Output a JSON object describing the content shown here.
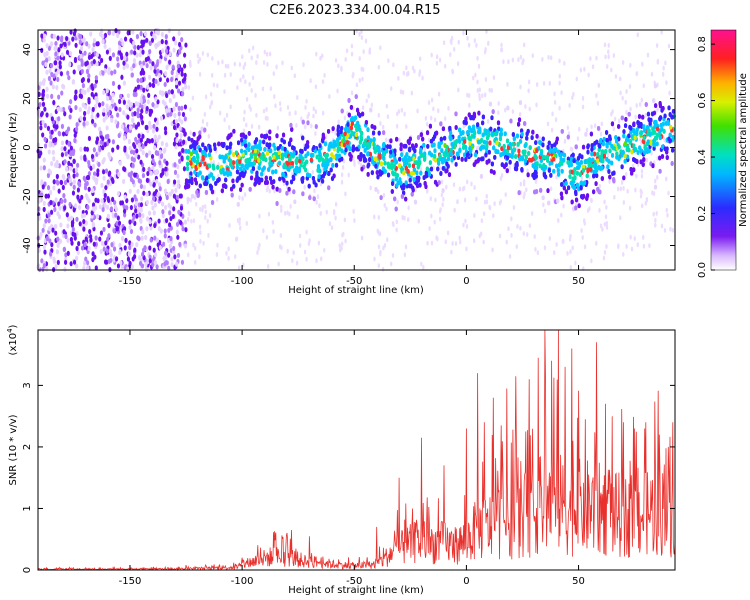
{
  "title": "C2E6.2023.334.00.04.R15",
  "colors": {
    "snr_line": "#e8302c",
    "spectrogram_dots": "#5a10f0",
    "axis": "#000000"
  },
  "chart_data": [
    {
      "type": "heatmap",
      "xlabel": "Height of straight line (km)",
      "ylabel": "Frequency (Hz)",
      "xlim": [
        -191,
        93
      ],
      "ylim": [
        -50,
        48
      ],
      "xticks": [
        -150,
        -100,
        -50,
        0,
        50
      ],
      "yticks": [
        -40,
        -20,
        0,
        20,
        40
      ],
      "colorbar": {
        "label": "Normalized spectral amplitude",
        "range": [
          0.0,
          0.85
        ],
        "ticks": [
          0.0,
          0.2,
          0.4,
          0.6,
          0.8
        ],
        "colormap": "rainbow (white-purple-blue-cyan-green-yellow-red-magenta)"
      },
      "ridge": {
        "description": "Main signal band frequency centre vs height",
        "x": [
          -125,
          -110,
          -100,
          -90,
          -80,
          -70,
          -60,
          -50,
          -45,
          -40,
          -30,
          -20,
          -10,
          0,
          10,
          20,
          30,
          40,
          50,
          60,
          70,
          80,
          90
        ],
        "y": [
          -5,
          -8,
          -4,
          -4,
          -5,
          -7,
          -3,
          8,
          2,
          -3,
          -10,
          -6,
          -2,
          3,
          3,
          0,
          -3,
          -6,
          -12,
          -3,
          -1,
          4,
          7
        ]
      }
    },
    {
      "type": "line",
      "xlabel": "Height of straight line (km)",
      "ylabel": "SNR (10 * v/v)",
      "yscale_label": "(x10",
      "yscale_exp": "4",
      "yscale_close": ")",
      "xlim": [
        -191,
        93
      ],
      "ylim": [
        0,
        3.9
      ],
      "xticks": [
        -150,
        -100,
        -50,
        0,
        50
      ],
      "yticks": [
        0,
        1,
        2,
        3
      ],
      "grid": false,
      "series": [
        {
          "x": [
            -191,
            -150,
            -125,
            -110,
            -102,
            -95,
            -88,
            -80,
            -72,
            -65,
            -58,
            -50,
            -42,
            -38,
            -32,
            -25,
            -20,
            -15,
            -10,
            -5,
            0,
            5,
            10,
            15,
            20,
            25,
            30,
            35,
            40,
            45,
            50,
            55,
            60,
            65,
            70,
            75,
            80,
            85,
            90,
            93
          ],
          "y": [
            0.02,
            0.02,
            0.03,
            0.05,
            0.07,
            0.2,
            0.3,
            0.32,
            0.2,
            0.18,
            0.12,
            0.1,
            0.12,
            0.2,
            0.45,
            0.6,
            0.7,
            0.6,
            0.65,
            0.55,
            0.7,
            0.95,
            1.0,
            1.15,
            1.1,
            1.25,
            1.35,
            1.6,
            1.6,
            1.4,
            1.45,
            1.45,
            1.4,
            1.3,
            1.25,
            1.2,
            1.35,
            1.4,
            1.4,
            1.3
          ],
          "peaks_x": [
            -125,
            -100,
            -78,
            -70,
            -40,
            -30,
            -24,
            -20,
            -10,
            0,
            5,
            8,
            12,
            18,
            22,
            28,
            32,
            35,
            38,
            41,
            44,
            47,
            53,
            58,
            62,
            65,
            70,
            75,
            80,
            86,
            90,
            92
          ],
          "peaks_y": [
            0.08,
            0.2,
            0.65,
            0.55,
            0.7,
            1.5,
            1.0,
            2.15,
            1.7,
            2.3,
            3.2,
            2.4,
            2.8,
            2.95,
            3.15,
            3.1,
            3.45,
            3.9,
            3.4,
            3.9,
            3.3,
            3.6,
            2.45,
            3.7,
            2.7,
            2.5,
            2.4,
            2.3,
            2.4,
            2.2,
            2.0,
            2.4
          ]
        }
      ]
    }
  ]
}
